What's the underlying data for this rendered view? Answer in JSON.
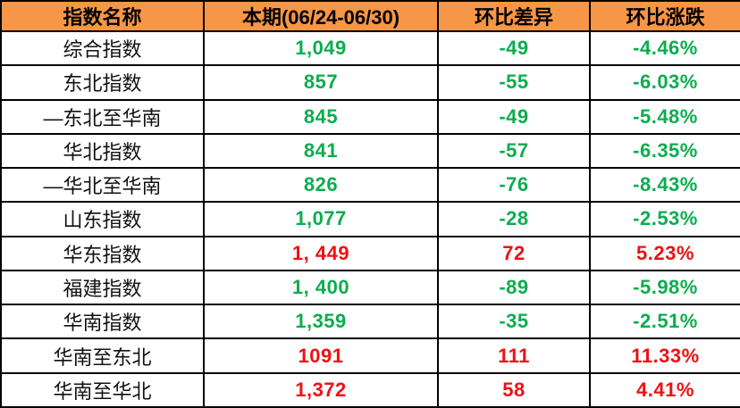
{
  "colors": {
    "header_bg": "#F79646",
    "up_red": "#EF1111",
    "down_green": "#0CAD4E",
    "border": "#000000",
    "name_text": "#111111"
  },
  "chart_data": {
    "type": "table",
    "title": "",
    "columns": [
      "指数名称",
      "本期(06/24-06/30)",
      "环比差异",
      "环比涨跌"
    ],
    "rows": [
      {
        "name": "综合指数",
        "current": "1,049",
        "diff": "-49",
        "change": "-4.46%",
        "trend": "down"
      },
      {
        "name": "东北指数",
        "current": "857",
        "diff": "-55",
        "change": "-6.03%",
        "trend": "down"
      },
      {
        "name": "—东北至华南",
        "current": "845",
        "diff": "-49",
        "change": "-5.48%",
        "trend": "down"
      },
      {
        "name": "华北指数",
        "current": "841",
        "diff": "-57",
        "change": "-6.35%",
        "trend": "down"
      },
      {
        "name": "—华北至华南",
        "current": "826",
        "diff": "-76",
        "change": "-8.43%",
        "trend": "down"
      },
      {
        "name": "山东指数",
        "current": "1,077",
        "diff": "-28",
        "change": "-2.53%",
        "trend": "down"
      },
      {
        "name": "华东指数",
        "current": "1, 449",
        "diff": "72",
        "change": "5.23%",
        "trend": "up"
      },
      {
        "name": "福建指数",
        "current": "1, 400",
        "diff": "-89",
        "change": "-5.98%",
        "trend": "down"
      },
      {
        "name": "华南指数",
        "current": "1,359",
        "diff": "-35",
        "change": "-2.51%",
        "trend": "down"
      },
      {
        "name": "华南至东北",
        "current": "1091",
        "diff": "111",
        "change": "11.33%",
        "trend": "up"
      },
      {
        "name": "华南至华北",
        "current": "1,372",
        "diff": "58",
        "change": "4.41%",
        "trend": "up"
      }
    ]
  }
}
